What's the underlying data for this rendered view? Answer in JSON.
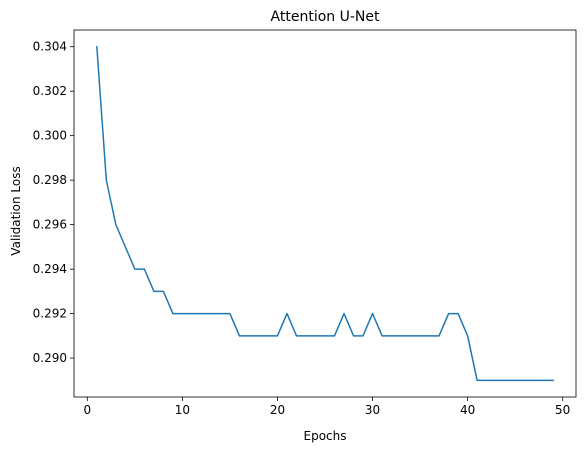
{
  "chart_data": {
    "type": "line",
    "title": "Attention U-Net",
    "xlabel": "Epochs",
    "ylabel": "Validation Loss",
    "xlim": [
      -1.4,
      51.4
    ],
    "ylim": [
      0.28825,
      0.30475
    ],
    "xticks": [
      0,
      10,
      20,
      30,
      40,
      50
    ],
    "yticks": [
      0.29,
      0.292,
      0.294,
      0.296,
      0.298,
      0.3,
      0.302,
      0.304
    ],
    "ytick_labels": [
      "0.290",
      "0.292",
      "0.294",
      "0.296",
      "0.298",
      "0.300",
      "0.302",
      "0.304"
    ],
    "grid": false,
    "line_color": "#1f77b4",
    "series": [
      {
        "x": [
          1,
          2,
          3,
          4,
          5,
          6,
          7,
          8,
          9,
          10,
          11,
          12,
          13,
          14,
          15,
          16,
          17,
          18,
          19,
          20,
          21,
          22,
          23,
          24,
          25,
          26,
          27,
          28,
          29,
          30,
          31,
          32,
          33,
          34,
          35,
          36,
          37,
          38,
          39,
          40,
          41,
          42,
          43,
          44,
          45,
          46,
          47,
          48,
          49
        ],
        "values": [
          0.304,
          0.298,
          0.296,
          0.295,
          0.294,
          0.294,
          0.293,
          0.293,
          0.292,
          0.292,
          0.292,
          0.292,
          0.292,
          0.292,
          0.292,
          0.291,
          0.291,
          0.291,
          0.291,
          0.291,
          0.292,
          0.291,
          0.291,
          0.291,
          0.291,
          0.291,
          0.292,
          0.291,
          0.291,
          0.292,
          0.291,
          0.291,
          0.291,
          0.291,
          0.291,
          0.291,
          0.291,
          0.292,
          0.292,
          0.291,
          0.289,
          0.289,
          0.289,
          0.289,
          0.289,
          0.289,
          0.289,
          0.289,
          0.289
        ]
      }
    ]
  }
}
